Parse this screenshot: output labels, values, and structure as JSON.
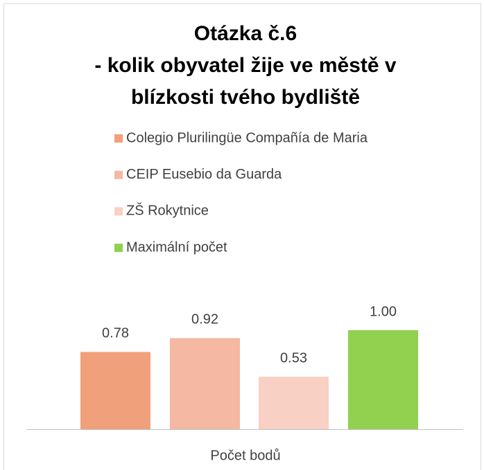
{
  "chart_data": {
    "type": "bar",
    "title": [
      "Otázka č.6",
      "- kolik obyvatel žije ve městě v",
      "blízkosti tvého bydliště"
    ],
    "categories": [
      "Počet bodů"
    ],
    "series": [
      {
        "name": "Colegio Plurilingüe Compañía de Maria",
        "color": "#f0a07a",
        "values": [
          0.78
        ],
        "value_labels": [
          "0.78"
        ]
      },
      {
        "name": "CEIP Eusebio da Guarda",
        "color": "#f4b8a3",
        "values": [
          0.92
        ],
        "value_labels": [
          "0.92"
        ]
      },
      {
        "name": "ZŠ Rokytnice",
        "color": "#f8d0c4",
        "values": [
          0.53
        ],
        "value_labels": [
          "0.53"
        ]
      },
      {
        "name": "Maximální počet",
        "color": "#92d050",
        "values": [
          1.0
        ],
        "value_labels": [
          "1.00"
        ]
      }
    ]
  }
}
